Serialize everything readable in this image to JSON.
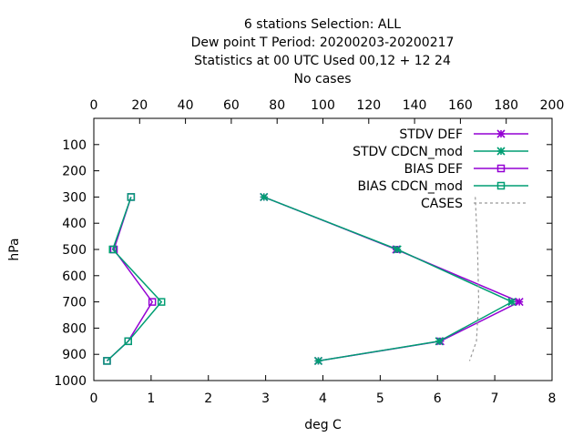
{
  "chart_data": {
    "type": "line",
    "title": [
      "6 stations Selection: ALL",
      "Dew point T  Period: 20200203-20200217",
      "Statistics at 00 UTC  Used  00,12  + 12 24",
      "No cases"
    ],
    "xlabel": "deg C",
    "ylabel": "hPa",
    "xlim": [
      0,
      8
    ],
    "x2lim": [
      0,
      200
    ],
    "ylim": [
      1000,
      0
    ],
    "x_ticks": [
      "0",
      "1",
      "2",
      "3",
      "4",
      "5",
      "6",
      "7",
      "8"
    ],
    "x2_ticks": [
      "0",
      "20",
      "40",
      "60",
      "80",
      "100",
      "120",
      "140",
      "160",
      "180",
      "200"
    ],
    "y_ticks": [
      "100",
      "200",
      "300",
      "400",
      "500",
      "600",
      "700",
      "800",
      "900",
      "1000"
    ],
    "legend_position": "top-right",
    "series": [
      {
        "name": "STDV DEF",
        "color": "#9400d3",
        "marker": "star",
        "points": [
          [
            2.97,
            300
          ],
          [
            5.28,
            500
          ],
          [
            7.43,
            700
          ],
          [
            6.05,
            850
          ],
          [
            3.92,
            925
          ]
        ]
      },
      {
        "name": "STDV CDCN_mod",
        "color": "#009e73",
        "marker": "star",
        "points": [
          [
            2.97,
            300
          ],
          [
            5.3,
            500
          ],
          [
            7.3,
            700
          ],
          [
            6.03,
            850
          ],
          [
            3.92,
            925
          ]
        ]
      },
      {
        "name": "BIAS DEF",
        "color": "#9400d3",
        "marker": "box",
        "points": [
          [
            0.65,
            300
          ],
          [
            0.35,
            500
          ],
          [
            1.02,
            700
          ],
          [
            0.6,
            850
          ],
          [
            0.23,
            925
          ]
        ]
      },
      {
        "name": "BIAS CDCN_mod",
        "color": "#009e73",
        "marker": "box",
        "points": [
          [
            0.65,
            300
          ],
          [
            0.33,
            500
          ],
          [
            1.18,
            700
          ],
          [
            0.6,
            850
          ],
          [
            0.23,
            925
          ]
        ]
      },
      {
        "name": "CASES",
        "color": "#999999",
        "marker": "none",
        "dashed": true,
        "axis": "x2",
        "points": [
          [
            166.5,
            300
          ],
          [
            167.5,
            500
          ],
          [
            168,
            700
          ],
          [
            167,
            850
          ],
          [
            164,
            925
          ]
        ]
      }
    ]
  }
}
